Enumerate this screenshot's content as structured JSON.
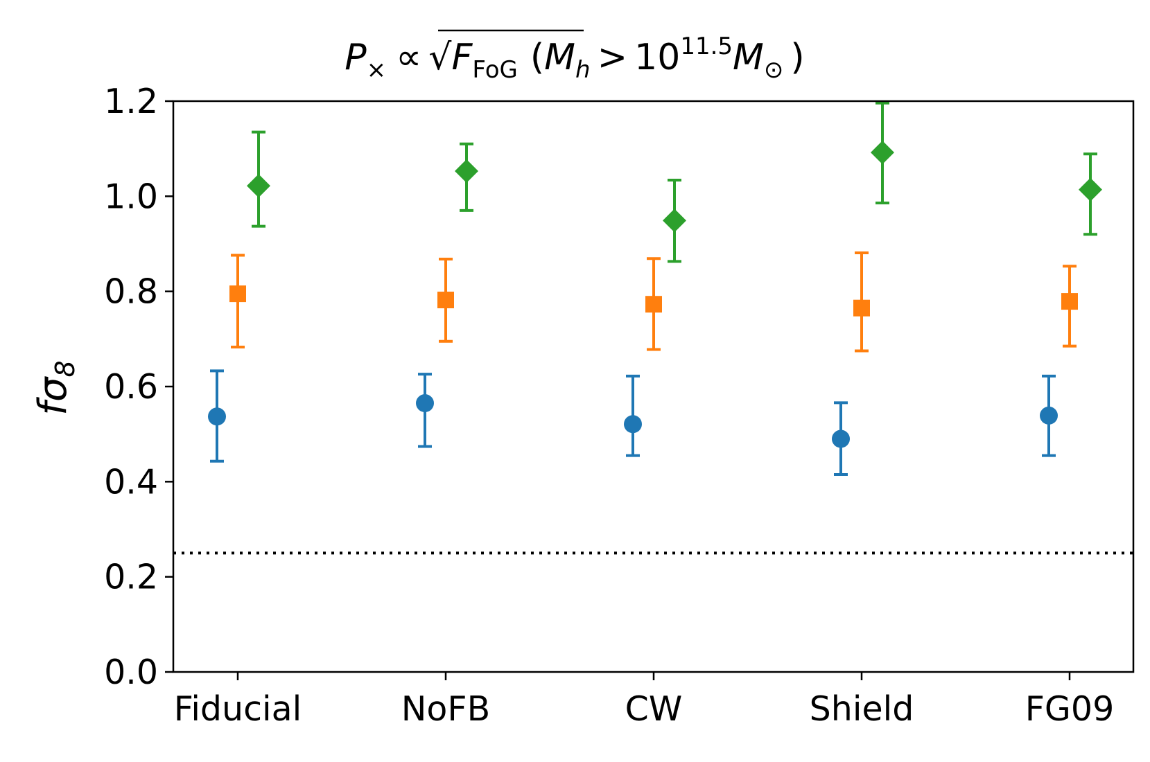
{
  "chart_data": {
    "type": "scatter",
    "title": {
      "parts": [
        "P",
        "×",
        "∝",
        "F",
        "FoG",
        "(",
        "M",
        "h",
        ">",
        "10",
        "11.5",
        "M",
        "⊙",
        ")"
      ]
    },
    "ylabel": {
      "base": "fσ",
      "sub": "8"
    },
    "xlabel": "",
    "categories": [
      "Fiducial",
      "NoFB",
      "CW",
      "Shield",
      "FG09"
    ],
    "ylim": [
      0.0,
      1.2
    ],
    "yticks": [
      "0.0",
      "0.2",
      "0.4",
      "0.6",
      "0.8",
      "1.0",
      "1.2"
    ],
    "grid": false,
    "legend": "none",
    "reference_line": {
      "y": 0.25,
      "style": "dotted",
      "color": "#000000"
    },
    "series": [
      {
        "marker": "circle",
        "color": "#1f77b4",
        "offset": -0.1,
        "values": [
          0.537,
          0.565,
          0.521,
          0.49,
          0.539
        ],
        "err_low": [
          0.443,
          0.474,
          0.455,
          0.415,
          0.455
        ],
        "err_high": [
          0.633,
          0.626,
          0.622,
          0.566,
          0.622
        ]
      },
      {
        "marker": "square",
        "color": "#ff7f0e",
        "offset": 0.0,
        "values": [
          0.795,
          0.782,
          0.773,
          0.765,
          0.779
        ],
        "err_low": [
          0.683,
          0.695,
          0.678,
          0.675,
          0.685
        ],
        "err_high": [
          0.876,
          0.868,
          0.869,
          0.881,
          0.853
        ]
      },
      {
        "marker": "diamond",
        "color": "#2ca02c",
        "offset": 0.1,
        "values": [
          1.022,
          1.053,
          0.949,
          1.092,
          1.014
        ],
        "err_low": [
          0.937,
          0.97,
          0.863,
          0.986,
          0.92
        ],
        "err_high": [
          1.135,
          1.11,
          1.034,
          1.196,
          1.089
        ]
      }
    ]
  }
}
